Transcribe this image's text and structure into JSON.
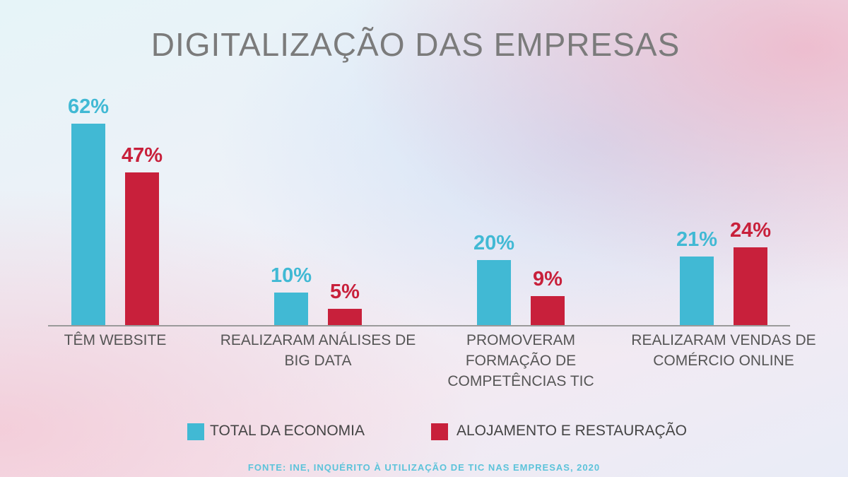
{
  "chart_data": {
    "type": "bar",
    "title": "DIGITALIZAÇÃO DAS EMPRESAS",
    "categories": [
      "TÊM WEBSITE",
      "REALIZARAM ANÁLISES DE BIG DATA",
      "PROMOVERAM FORMAÇÃO DE COMPETÊNCIAS TIC",
      "REALIZARAM VENDAS DE COMÉRCIO ONLINE"
    ],
    "series": [
      {
        "name": "TOTAL DA ECONOMIA",
        "color": "#41b9d4",
        "values": [
          62,
          10,
          20,
          21
        ],
        "value_labels": [
          "62%",
          "10%",
          "20%",
          "21%"
        ]
      },
      {
        "name": "ALOJAMENTO E RESTAURAÇÃO",
        "color": "#c8203b",
        "values": [
          47,
          5,
          9,
          24
        ],
        "value_labels": [
          "47%",
          "5%",
          "9%",
          "24%"
        ]
      }
    ],
    "source": "FONTE: INE, INQUÉRITO À UTILIZAÇÃO DE TIC NAS EMPRESAS, 2020"
  }
}
